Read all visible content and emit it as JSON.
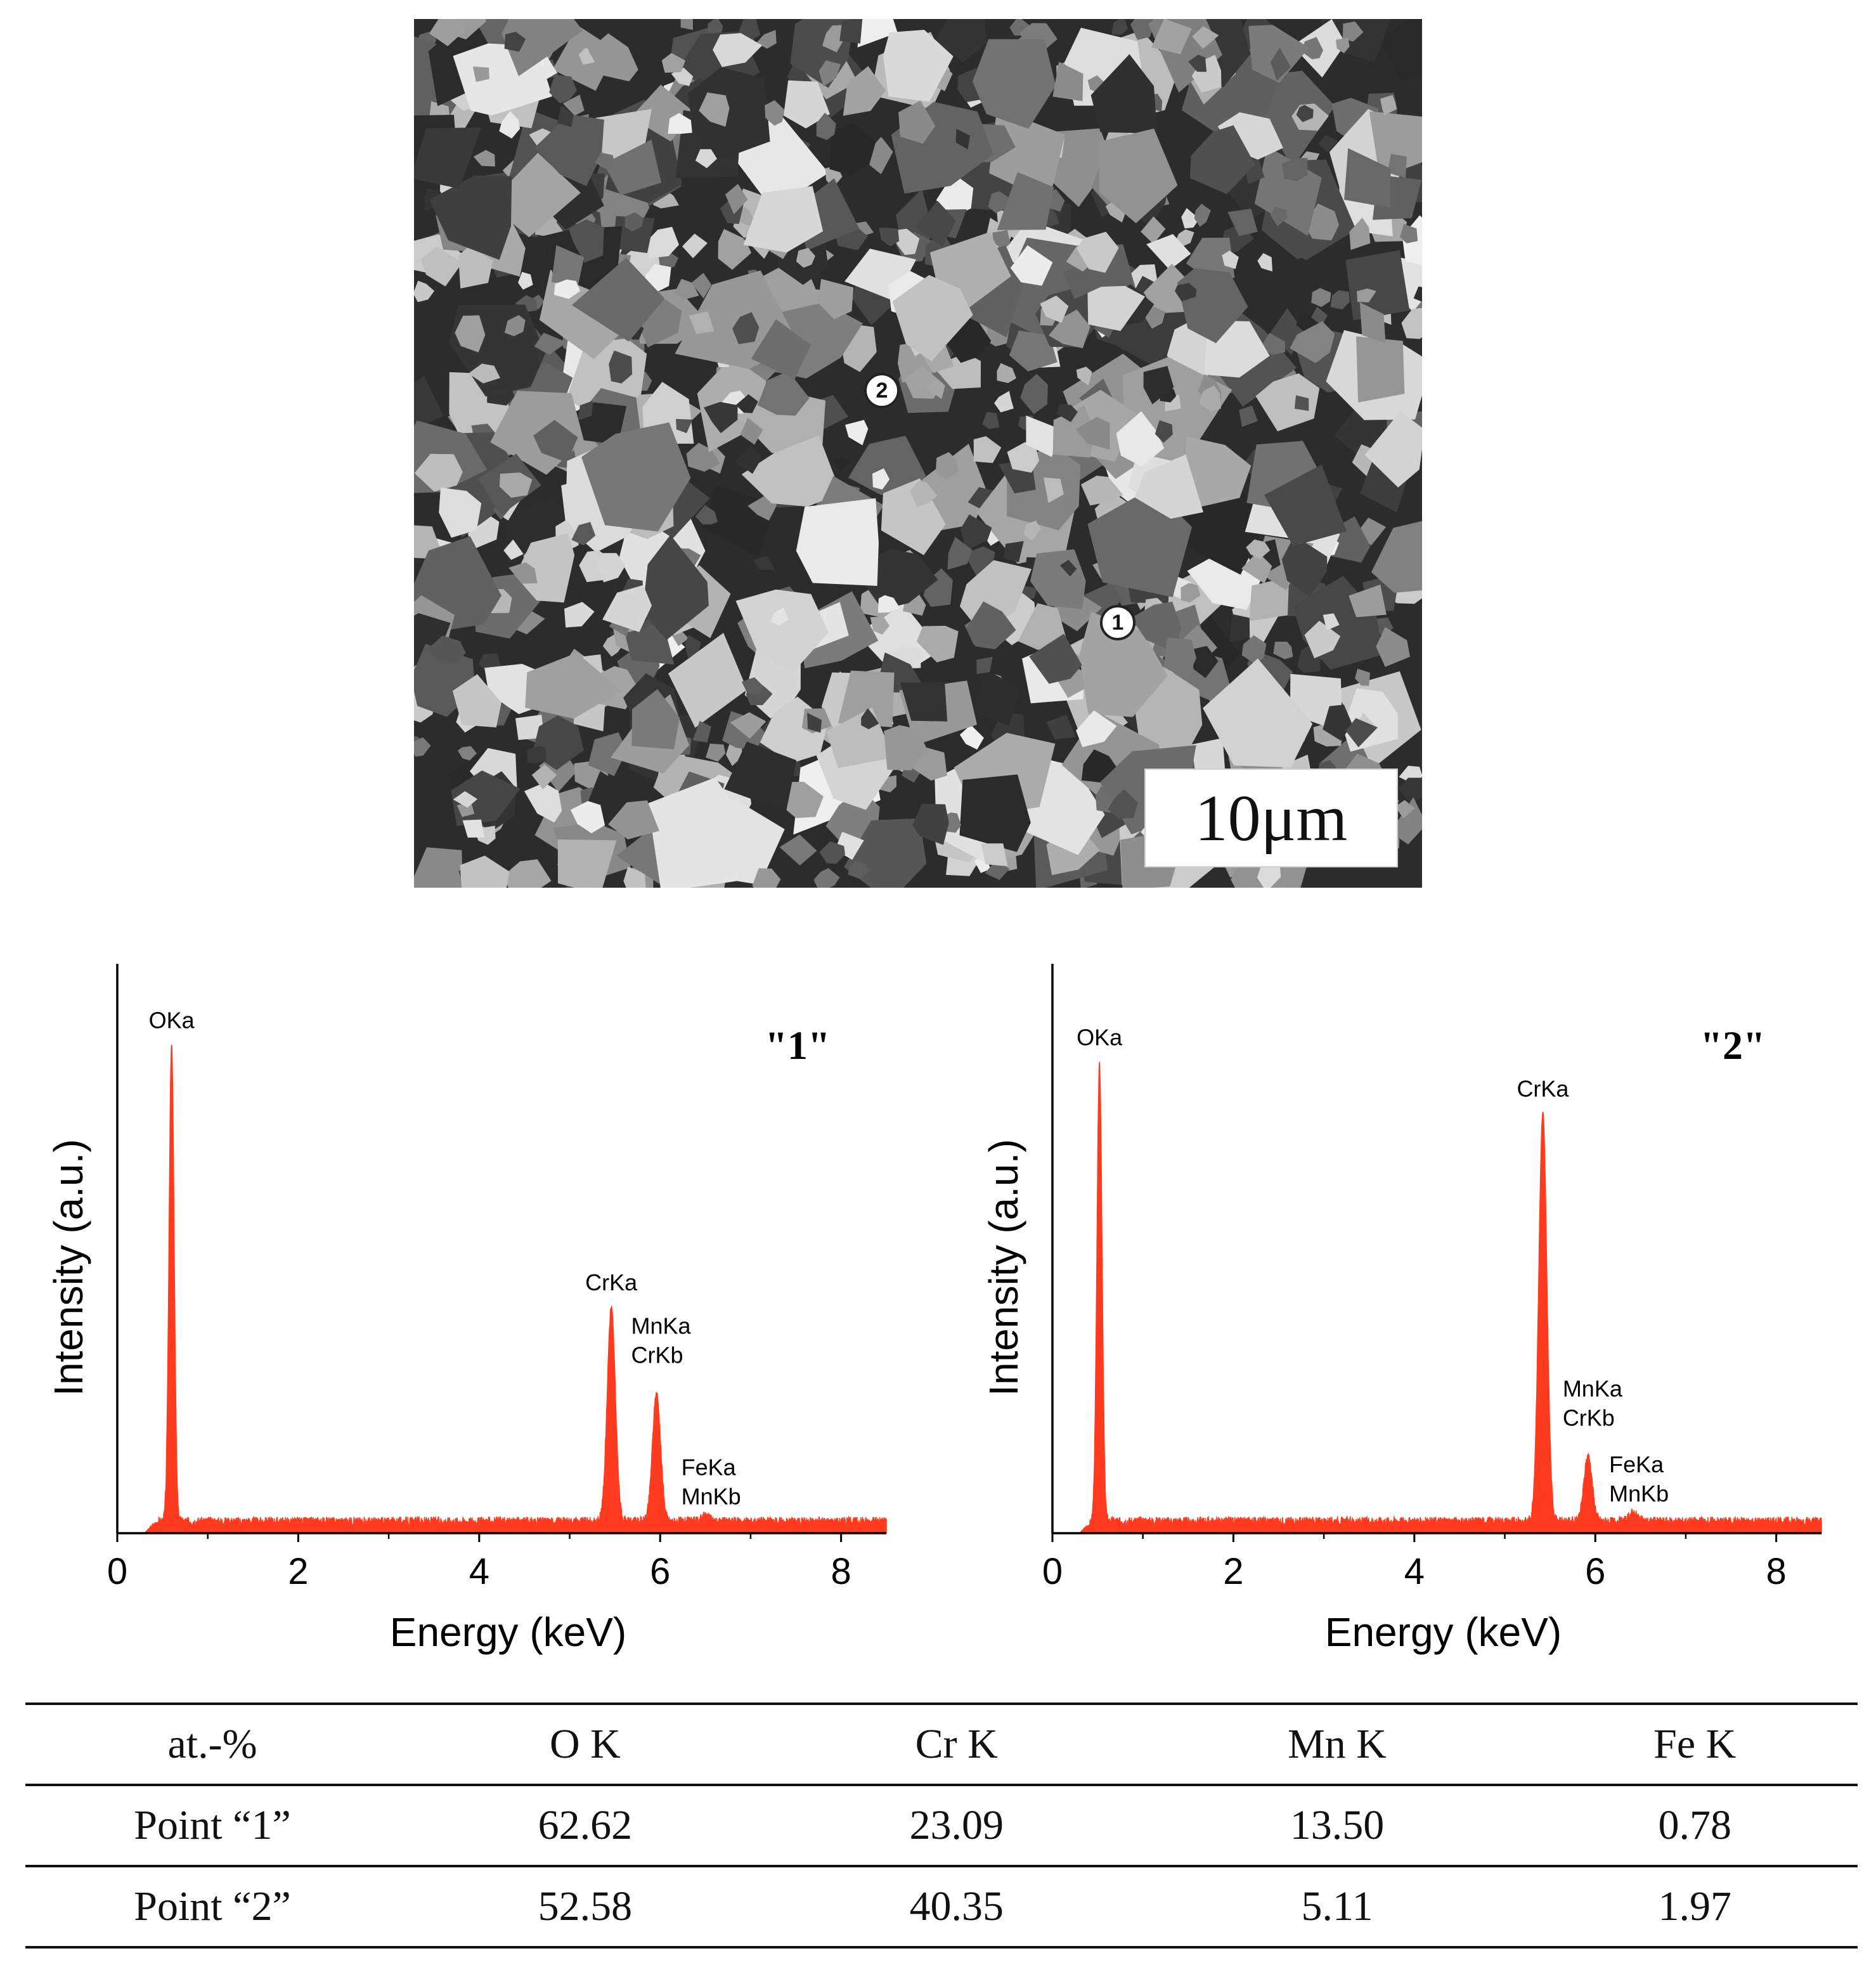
{
  "micrograph": {
    "scale_bar": "10μm",
    "markers": [
      {
        "label": "1"
      },
      {
        "label": "2"
      }
    ]
  },
  "chart_data": [
    {
      "type": "line",
      "title": "\"1\"",
      "xlabel": "Energy (keV)",
      "ylabel": "Intensity (a.u.)",
      "xlim": [
        0,
        8.5
      ],
      "ylim": [
        0,
        100
      ],
      "xticks": [
        0,
        2,
        4,
        6,
        8
      ],
      "color": "#ff3b1f",
      "baseline": 2.5,
      "peaks": [
        {
          "energy": 0.6,
          "intensity": 86,
          "label": "OKa"
        },
        {
          "energy": 5.46,
          "intensity": 40,
          "label": "CrKa"
        },
        {
          "energy": 5.96,
          "intensity": 25,
          "label": "MnKa CrKb"
        },
        {
          "energy": 6.5,
          "intensity": 3.5,
          "label": "FeKa MnKb"
        }
      ]
    },
    {
      "type": "line",
      "title": "\"2\"",
      "xlabel": "Energy (keV)",
      "ylabel": "Intensity (a.u.)",
      "xlim": [
        0,
        8.5
      ],
      "ylim": [
        0,
        100
      ],
      "xticks": [
        0,
        2,
        4,
        6,
        8
      ],
      "color": "#ff3b1f",
      "baseline": 2.5,
      "peaks": [
        {
          "energy": 0.52,
          "intensity": 83,
          "label": "OKa"
        },
        {
          "energy": 5.42,
          "intensity": 74,
          "label": "CrKa"
        },
        {
          "energy": 5.92,
          "intensity": 14,
          "label": "MnKa CrKb"
        },
        {
          "energy": 6.42,
          "intensity": 4,
          "label": "FeKa MnKb"
        }
      ]
    }
  ],
  "table": {
    "headers": [
      "at.-%",
      "O K",
      "Cr K",
      "Mn K",
      "Fe K"
    ],
    "rows": [
      [
        "Point “1”",
        "62.62",
        "23.09",
        "13.50",
        "0.78"
      ],
      [
        "Point “2”",
        "52.58",
        "40.35",
        "5.11",
        "1.97"
      ]
    ]
  }
}
